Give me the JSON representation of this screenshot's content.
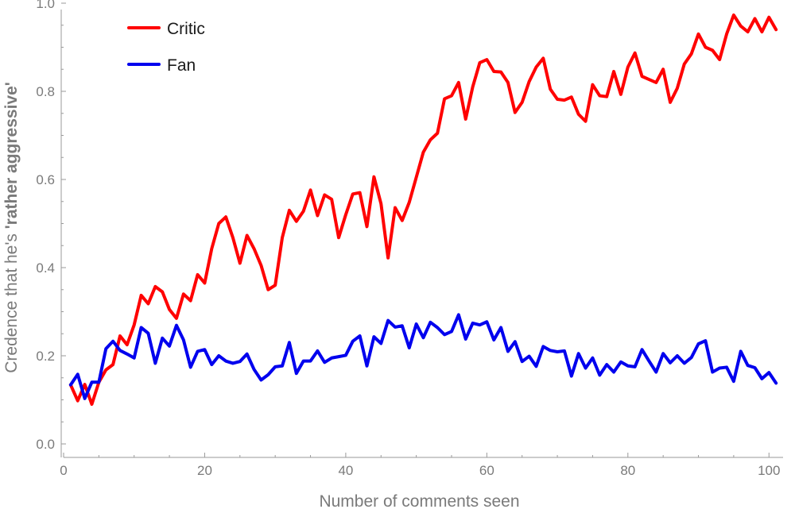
{
  "chart_data": {
    "type": "line",
    "xlabel": "Number of comments seen",
    "ylabel_prefix": "Credence that he's ",
    "ylabel_emphasis": "'rather aggressive'",
    "xlim": [
      0,
      102
    ],
    "ylim": [
      0.0,
      1.0
    ],
    "xticks": [
      0,
      20,
      40,
      60,
      80,
      100
    ],
    "yticks": [
      "0.0",
      "0.2",
      "0.4",
      "0.6",
      "0.8",
      "1.0"
    ],
    "legend_position": "top-left",
    "x_start": 1,
    "series": [
      {
        "name": "Critic",
        "color": "#ff0000",
        "values": [
          0.134,
          0.098,
          0.135,
          0.09,
          0.14,
          0.168,
          0.18,
          0.245,
          0.225,
          0.27,
          0.337,
          0.318,
          0.357,
          0.345,
          0.305,
          0.285,
          0.34,
          0.325,
          0.384,
          0.365,
          0.443,
          0.5,
          0.515,
          0.468,
          0.41,
          0.473,
          0.443,
          0.405,
          0.35,
          0.36,
          0.468,
          0.53,
          0.505,
          0.528,
          0.576,
          0.518,
          0.565,
          0.555,
          0.468,
          0.52,
          0.567,
          0.57,
          0.493,
          0.606,
          0.545,
          0.422,
          0.536,
          0.507,
          0.548,
          0.605,
          0.662,
          0.69,
          0.705,
          0.783,
          0.79,
          0.82,
          0.737,
          0.81,
          0.865,
          0.872,
          0.845,
          0.844,
          0.82,
          0.752,
          0.775,
          0.822,
          0.855,
          0.875,
          0.805,
          0.782,
          0.78,
          0.787,
          0.748,
          0.732,
          0.815,
          0.79,
          0.788,
          0.845,
          0.793,
          0.855,
          0.887,
          0.834,
          0.827,
          0.82,
          0.85,
          0.775,
          0.807,
          0.862,
          0.885,
          0.93,
          0.9,
          0.893,
          0.872,
          0.93,
          0.973,
          0.948,
          0.935,
          0.965,
          0.935,
          0.968,
          0.94
        ]
      },
      {
        "name": "Fan",
        "color": "#0000ee",
        "values": [
          0.134,
          0.158,
          0.103,
          0.14,
          0.14,
          0.216,
          0.233,
          0.212,
          0.204,
          0.195,
          0.264,
          0.251,
          0.183,
          0.24,
          0.222,
          0.269,
          0.236,
          0.174,
          0.21,
          0.214,
          0.18,
          0.2,
          0.188,
          0.183,
          0.187,
          0.204,
          0.169,
          0.145,
          0.157,
          0.175,
          0.177,
          0.23,
          0.16,
          0.188,
          0.188,
          0.211,
          0.185,
          0.195,
          0.198,
          0.201,
          0.233,
          0.245,
          0.177,
          0.243,
          0.228,
          0.28,
          0.265,
          0.268,
          0.218,
          0.272,
          0.241,
          0.276,
          0.264,
          0.248,
          0.255,
          0.293,
          0.238,
          0.274,
          0.27,
          0.277,
          0.236,
          0.264,
          0.21,
          0.232,
          0.187,
          0.199,
          0.176,
          0.221,
          0.212,
          0.209,
          0.211,
          0.154,
          0.205,
          0.172,
          0.195,
          0.156,
          0.18,
          0.163,
          0.186,
          0.177,
          0.175,
          0.214,
          0.188,
          0.163,
          0.205,
          0.184,
          0.2,
          0.183,
          0.196,
          0.227,
          0.234,
          0.163,
          0.172,
          0.174,
          0.142,
          0.21,
          0.178,
          0.173,
          0.148,
          0.162,
          0.138
        ]
      }
    ]
  }
}
